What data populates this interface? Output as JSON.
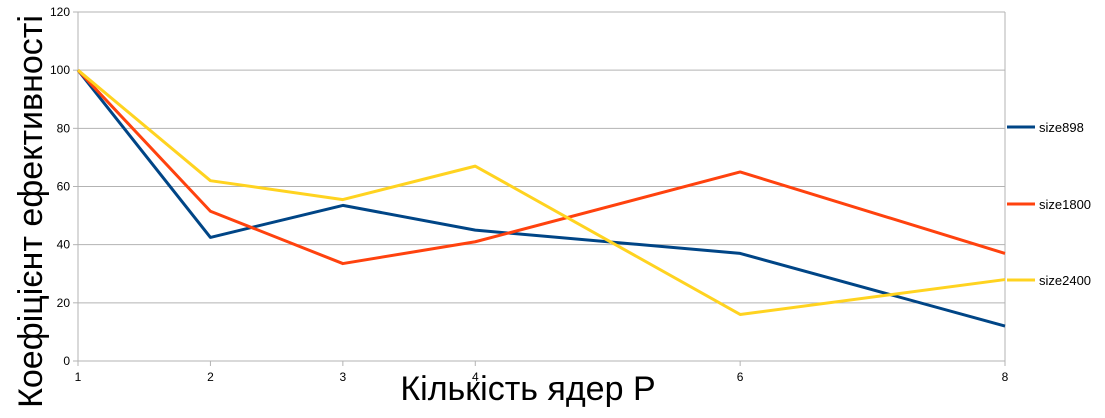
{
  "chart_data": {
    "type": "line",
    "title": "",
    "xlabel": "Кількість ядер P",
    "ylabel": "Коефіцієнт ефективності",
    "x": [
      1,
      2,
      3,
      4,
      6,
      8
    ],
    "x_tick_labels": [
      "1",
      "2",
      "3",
      "4",
      "6",
      "8"
    ],
    "ylim": [
      0,
      120
    ],
    "y_ticks": [
      0,
      20,
      40,
      60,
      80,
      100,
      120
    ],
    "grid": "horizontal",
    "legend_position": "right",
    "series": [
      {
        "name": "size898",
        "color": "#004586",
        "values": [
          100,
          42.5,
          53.5,
          45,
          37,
          12
        ]
      },
      {
        "name": "size1800",
        "color": "#ff420e",
        "values": [
          100,
          51.5,
          33.5,
          41,
          65,
          37
        ]
      },
      {
        "name": "size2400",
        "color": "#ffd320",
        "values": [
          100,
          62,
          55.5,
          67,
          16,
          28
        ]
      }
    ]
  }
}
